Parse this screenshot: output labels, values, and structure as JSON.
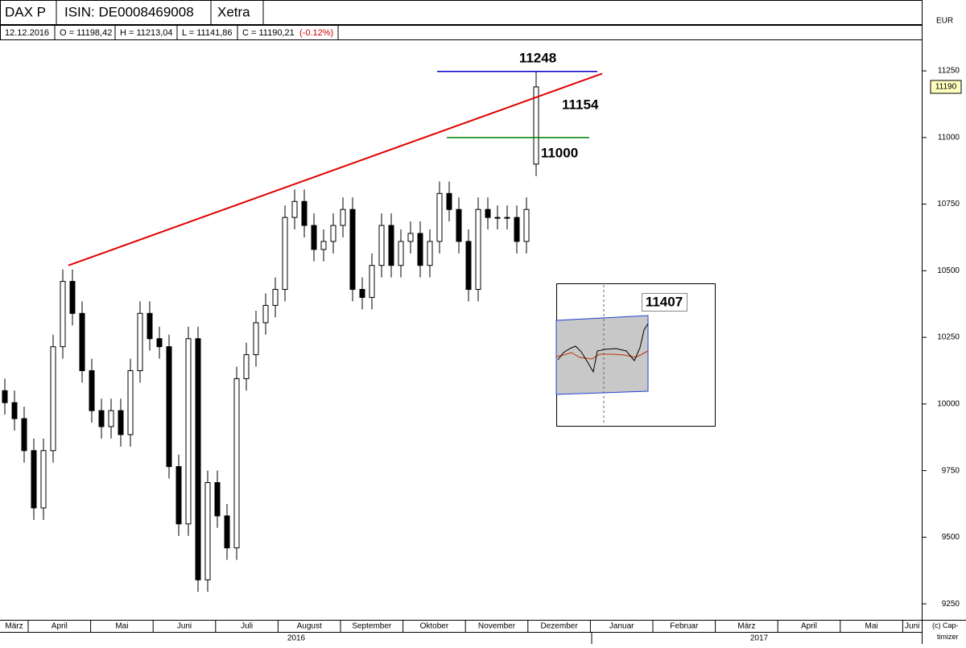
{
  "header": {
    "symbol": "DAX P",
    "isin": "ISIN: DE0008469008",
    "exchange": "Xetra",
    "currency": "EUR"
  },
  "info": {
    "date": "12.12.2016",
    "open": "O = 11198,42",
    "high": "H = 11213,04",
    "low": "L = 11141,86",
    "close": "C = 11190,21",
    "change": "(-0.12%)"
  },
  "chart_data": {
    "type": "candlestick",
    "open": [
      10050,
      10005,
      9945,
      9825,
      9610,
      9825,
      10215,
      10460,
      10340,
      10125,
      9975,
      9915,
      9975,
      9885,
      10125,
      10340,
      10245,
      10215,
      9765,
      9550,
      10245,
      9340,
      9705,
      9580,
      9460,
      10095,
      10185,
      10305,
      10370,
      10430,
      10700,
      10760,
      10670,
      10580,
      10610,
      10670,
      10730,
      10430,
      10400,
      10520,
      10670,
      10520,
      10610,
      10640,
      10520,
      10610,
      10790,
      10730,
      10610,
      10430,
      10730,
      10700,
      10700,
      10700,
      10610,
      10900
    ],
    "high": [
      10095,
      10050,
      9990,
      9870,
      9870,
      10260,
      10505,
      10505,
      10385,
      10170,
      10020,
      10020,
      10020,
      10170,
      10385,
      10385,
      10290,
      10260,
      9810,
      10290,
      10290,
      9750,
      9750,
      9625,
      10140,
      10230,
      10350,
      10415,
      10475,
      10745,
      10805,
      10805,
      10715,
      10655,
      10715,
      10775,
      10775,
      10475,
      10565,
      10715,
      10715,
      10655,
      10685,
      10685,
      10655,
      10835,
      10835,
      10775,
      10655,
      10775,
      10775,
      10745,
      10745,
      10745,
      10775,
      11248
    ],
    "low": [
      9960,
      9900,
      9780,
      9565,
      9565,
      9780,
      10170,
      10295,
      10080,
      9930,
      9870,
      9870,
      9840,
      9840,
      10080,
      10200,
      10170,
      9720,
      9505,
      9505,
      9295,
      9295,
      9535,
      9415,
      9415,
      10050,
      10140,
      10260,
      10325,
      10385,
      10655,
      10625,
      10535,
      10535,
      10565,
      10625,
      10385,
      10355,
      10355,
      10475,
      10475,
      10475,
      10565,
      10475,
      10475,
      10565,
      10685,
      10565,
      10385,
      10385,
      10655,
      10655,
      10655,
      10565,
      10565,
      10855
    ],
    "close": [
      10005,
      9945,
      9825,
      9610,
      9825,
      10215,
      10460,
      10340,
      10125,
      9975,
      9915,
      9975,
      9885,
      10125,
      10340,
      10245,
      10215,
      9765,
      9550,
      10245,
      9340,
      9705,
      9580,
      9460,
      10095,
      10185,
      10305,
      10370,
      10430,
      10700,
      10760,
      10670,
      10580,
      10610,
      10670,
      10730,
      10430,
      10400,
      10520,
      10670,
      10520,
      10610,
      10640,
      10520,
      10610,
      10790,
      10730,
      10610,
      10430,
      10730,
      10700,
      10700,
      10700,
      10610,
      10730,
      11190
    ],
    "ylim": [
      9190,
      11365
    ],
    "yticks": [
      9250,
      9500,
      9750,
      10000,
      10250,
      10500,
      10750,
      11000,
      11250
    ],
    "last_price": 11190,
    "months": [
      "März",
      "April",
      "Mai",
      "Juni",
      "Juli",
      "August",
      "September",
      "Oktober",
      "November",
      "Dezember",
      "Januar",
      "Februar",
      "März",
      "April",
      "Mai",
      "Juni"
    ],
    "years": [
      "2016",
      "2017"
    ],
    "trendline": {
      "values": [
        10520,
        11240
      ],
      "color": "#e00000"
    },
    "levels": [
      {
        "value": 11248,
        "label": "11248",
        "color": "#0000cc"
      },
      {
        "value": 11000,
        "label": "11000",
        "color": "#008000"
      }
    ],
    "trend_label": "11154",
    "inset_label": "11407",
    "copyright": "(c) Cap-timizer"
  }
}
